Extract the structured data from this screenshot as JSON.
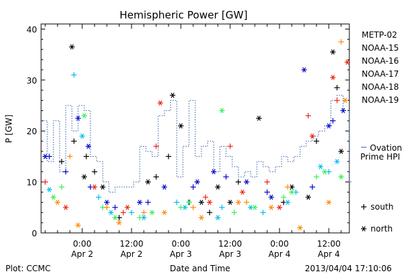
{
  "chart_data": {
    "type": "scatter",
    "title": "Hemispheric Power [GW]",
    "ylabel": "P [GW]",
    "xlabel": "Date and Time",
    "ylim": [
      0,
      41
    ],
    "xlim": [
      "2013-04-01T14:00",
      "2013-04-04T17:00"
    ],
    "grid": false,
    "y_ticks": [
      "0",
      "10",
      "20",
      "30",
      "40"
    ],
    "x_ticks": [
      {
        "time": "2013-04-02T00:00",
        "line1": "0:00",
        "line2": "Apr 2"
      },
      {
        "time": "2013-04-02T12:00",
        "line1": "12:00",
        "line2": "Apr 2"
      },
      {
        "time": "2013-04-03T00:00",
        "line1": "0:00",
        "line2": "Apr 3"
      },
      {
        "time": "2013-04-03T12:00",
        "line1": "12:00",
        "line2": "Apr 3"
      },
      {
        "time": "2013-04-04T00:00",
        "line1": "0:00",
        "line2": "Apr 4"
      },
      {
        "time": "2013-04-04T12:00",
        "line1": "12:00",
        "line2": "Apr 4"
      }
    ],
    "legend_position": "right",
    "series": [
      {
        "name": "METP-02",
        "color": "#000000",
        "north": [
          [
            "2013-04-01T21:30",
            36.5
          ],
          [
            "2013-04-02T00:30",
            11
          ],
          [
            "2013-04-02T05:00",
            9
          ],
          [
            "2013-04-02T16:00",
            10
          ],
          [
            "2013-04-02T22:00",
            27
          ],
          [
            "2013-04-03T00:00",
            21
          ],
          [
            "2013-04-03T05:00",
            6
          ],
          [
            "2013-04-03T09:00",
            9
          ],
          [
            "2013-04-03T12:00",
            6
          ],
          [
            "2013-04-03T19:00",
            22.5
          ],
          [
            "2013-04-04T03:00",
            9
          ],
          [
            "2013-04-04T07:00",
            7
          ],
          [
            "2013-04-04T13:00",
            35.5
          ],
          [
            "2013-04-04T15:00",
            16
          ]
        ],
        "south": [
          [
            "2013-04-01T19:00",
            14
          ],
          [
            "2013-04-01T22:00",
            18
          ],
          [
            "2013-04-02T01:00",
            15
          ],
          [
            "2013-04-02T03:00",
            12
          ],
          [
            "2013-04-02T09:00",
            3
          ],
          [
            "2013-04-02T18:00",
            11
          ],
          [
            "2013-04-02T21:00",
            15
          ],
          [
            "2013-04-03T02:00",
            6
          ],
          [
            "2013-04-03T07:00",
            4
          ],
          [
            "2013-04-03T14:00",
            10
          ],
          [
            "2013-04-04T01:00",
            6
          ],
          [
            "2013-04-04T09:00",
            18
          ],
          [
            "2013-04-04T14:00",
            28.5
          ]
        ]
      },
      {
        "name": "NOAA-15",
        "color": "#0000cc",
        "north": [
          [
            "2013-04-01T15:00",
            15
          ],
          [
            "2013-04-01T23:00",
            22.5
          ],
          [
            "2013-04-02T01:30",
            17
          ],
          [
            "2013-04-02T06:00",
            6
          ],
          [
            "2013-04-02T14:00",
            6
          ],
          [
            "2013-04-02T20:00",
            9
          ],
          [
            "2013-04-03T04:00",
            10
          ],
          [
            "2013-04-03T08:00",
            12
          ],
          [
            "2013-04-03T16:00",
            10
          ],
          [
            "2013-04-03T22:00",
            7
          ],
          [
            "2013-04-04T06:00",
            32
          ],
          [
            "2013-04-04T12:00",
            21
          ],
          [
            "2013-04-04T15:30",
            24
          ]
        ],
        "south": [
          [
            "2013-04-01T16:00",
            15
          ],
          [
            "2013-04-01T20:00",
            12
          ],
          [
            "2013-04-02T02:00",
            9
          ],
          [
            "2013-04-02T08:00",
            5
          ],
          [
            "2013-04-02T16:00",
            6
          ],
          [
            "2013-04-03T03:00",
            9
          ],
          [
            "2013-04-03T11:00",
            11
          ],
          [
            "2013-04-03T21:00",
            8
          ],
          [
            "2013-04-04T08:00",
            9
          ],
          [
            "2013-04-04T13:00",
            22
          ]
        ]
      },
      {
        "name": "NOAA-16",
        "color": "#00bbee",
        "north": [
          [
            "2013-04-01T16:00",
            8.5
          ],
          [
            "2013-04-02T00:00",
            19
          ],
          [
            "2013-04-02T07:00",
            4
          ],
          [
            "2013-04-02T15:00",
            3
          ],
          [
            "2013-04-03T01:00",
            5
          ],
          [
            "2013-04-03T09:00",
            3
          ],
          [
            "2013-04-03T17:00",
            5
          ],
          [
            "2013-04-04T02:00",
            6
          ],
          [
            "2013-04-04T10:00",
            13
          ],
          [
            "2013-04-04T14:00",
            14
          ]
        ],
        "south": [
          [
            "2013-04-01T22:00",
            31
          ],
          [
            "2013-04-02T04:00",
            7
          ],
          [
            "2013-04-02T12:00",
            4
          ],
          [
            "2013-04-02T23:00",
            6
          ],
          [
            "2013-04-03T10:00",
            5
          ],
          [
            "2013-04-03T20:00",
            4
          ],
          [
            "2013-04-04T04:00",
            8
          ],
          [
            "2013-04-04T12:00",
            12
          ]
        ]
      },
      {
        "name": "NOAA-17",
        "color": "#33ee55",
        "north": [
          [
            "2013-04-01T17:00",
            7
          ],
          [
            "2013-04-02T00:30",
            23
          ],
          [
            "2013-04-02T08:00",
            3
          ],
          [
            "2013-04-02T17:00",
            4
          ],
          [
            "2013-04-03T02:00",
            6
          ],
          [
            "2013-04-03T10:00",
            24
          ],
          [
            "2013-04-03T18:00",
            5
          ],
          [
            "2013-04-04T03:00",
            8
          ],
          [
            "2013-04-04T11:00",
            12
          ],
          [
            "2013-04-04T15:00",
            11
          ]
        ],
        "south": [
          [
            "2013-04-01T19:00",
            9
          ],
          [
            "2013-04-02T05:00",
            5
          ],
          [
            "2013-04-02T14:00",
            3
          ],
          [
            "2013-04-03T00:00",
            5
          ],
          [
            "2013-04-03T13:00",
            4
          ],
          [
            "2013-04-04T01:00",
            7
          ],
          [
            "2013-04-04T09:00",
            11
          ]
        ]
      },
      {
        "name": "NOAA-18",
        "color": "#ff8800",
        "north": [
          [
            "2013-04-01T18:00",
            6
          ],
          [
            "2013-04-01T23:00",
            1.5
          ],
          [
            "2013-04-02T09:00",
            2
          ],
          [
            "2013-04-02T20:00",
            4
          ],
          [
            "2013-04-03T05:00",
            3
          ],
          [
            "2013-04-03T14:00",
            6
          ],
          [
            "2013-04-03T22:00",
            5
          ],
          [
            "2013-04-04T05:00",
            1
          ],
          [
            "2013-04-04T12:00",
            6
          ],
          [
            "2013-04-04T16:00",
            26
          ]
        ],
        "south": [
          [
            "2013-04-01T21:00",
            15
          ],
          [
            "2013-04-02T06:00",
            5
          ],
          [
            "2013-04-02T15:00",
            4
          ],
          [
            "2013-04-03T03:00",
            5
          ],
          [
            "2013-04-03T16:00",
            6
          ],
          [
            "2013-04-04T02:00",
            9
          ],
          [
            "2013-04-04T15:00",
            37.5
          ]
        ]
      },
      {
        "name": "NOAA-19",
        "color": "#ee2211",
        "north": [
          [
            "2013-04-01T20:00",
            5
          ],
          [
            "2013-04-02T03:00",
            9
          ],
          [
            "2013-04-02T11:00",
            5
          ],
          [
            "2013-04-02T19:00",
            25.5
          ],
          [
            "2013-04-03T07:00",
            6
          ],
          [
            "2013-04-03T15:00",
            8
          ],
          [
            "2013-04-04T00:00",
            5
          ],
          [
            "2013-04-04T08:00",
            19
          ],
          [
            "2013-04-04T13:00",
            30.5
          ],
          [
            "2013-04-04T16:30",
            33.5
          ]
        ],
        "south": [
          [
            "2013-04-01T15:00",
            10
          ],
          [
            "2013-04-02T10:00",
            4
          ],
          [
            "2013-04-02T18:00",
            17
          ],
          [
            "2013-04-03T06:00",
            7
          ],
          [
            "2013-04-03T12:00",
            17
          ],
          [
            "2013-04-03T21:00",
            10
          ],
          [
            "2013-04-04T07:00",
            23
          ],
          [
            "2013-04-04T14:00",
            26
          ]
        ]
      }
    ],
    "ovation_step": {
      "name": "Ovation Prime HPI",
      "legend_lines": [
        "Ovation",
        "Prime HPI"
      ],
      "color": "#2255aa",
      "points": [
        [
          "2013-04-01T14:00",
          22
        ],
        [
          "2013-04-01T15:30",
          14
        ],
        [
          "2013-04-01T17:00",
          22
        ],
        [
          "2013-04-01T18:30",
          12
        ],
        [
          "2013-04-01T20:00",
          25
        ],
        [
          "2013-04-01T21:30",
          20
        ],
        [
          "2013-04-01T23:00",
          25
        ],
        [
          "2013-04-02T00:30",
          24
        ],
        [
          "2013-04-02T02:00",
          15
        ],
        [
          "2013-04-02T03:30",
          14
        ],
        [
          "2013-04-02T05:00",
          10
        ],
        [
          "2013-04-02T06:30",
          8
        ],
        [
          "2013-04-02T08:00",
          9
        ],
        [
          "2013-04-02T09:30",
          9
        ],
        [
          "2013-04-02T11:00",
          9
        ],
        [
          "2013-04-02T12:30",
          10
        ],
        [
          "2013-04-02T14:00",
          17
        ],
        [
          "2013-04-02T15:30",
          16
        ],
        [
          "2013-04-02T17:00",
          15
        ],
        [
          "2013-04-02T18:30",
          23
        ],
        [
          "2013-04-02T20:00",
          24
        ],
        [
          "2013-04-02T21:30",
          26
        ],
        [
          "2013-04-02T23:00",
          11
        ],
        [
          "2013-04-03T00:30",
          17
        ],
        [
          "2013-04-03T02:00",
          26
        ],
        [
          "2013-04-03T03:30",
          15
        ],
        [
          "2013-04-03T05:00",
          17
        ],
        [
          "2013-04-03T06:30",
          18
        ],
        [
          "2013-04-03T08:00",
          12
        ],
        [
          "2013-04-03T09:30",
          17
        ],
        [
          "2013-04-03T11:00",
          15
        ],
        [
          "2013-04-03T12:30",
          13
        ],
        [
          "2013-04-03T14:00",
          11
        ],
        [
          "2013-04-03T15:30",
          12
        ],
        [
          "2013-04-03T17:00",
          11
        ],
        [
          "2013-04-03T18:30",
          14
        ],
        [
          "2013-04-03T20:00",
          13
        ],
        [
          "2013-04-03T21:30",
          12
        ],
        [
          "2013-04-03T23:00",
          13
        ],
        [
          "2013-04-04T00:30",
          15
        ],
        [
          "2013-04-04T02:00",
          14
        ],
        [
          "2013-04-04T03:30",
          15
        ],
        [
          "2013-04-04T05:00",
          17
        ],
        [
          "2013-04-04T06:30",
          18
        ],
        [
          "2013-04-04T08:00",
          19
        ],
        [
          "2013-04-04T09:30",
          20
        ],
        [
          "2013-04-04T11:00",
          21
        ],
        [
          "2013-04-04T12:30",
          26
        ],
        [
          "2013-04-04T14:00",
          27
        ],
        [
          "2013-04-04T15:30",
          24
        ],
        [
          "2013-04-04T17:00",
          10
        ]
      ]
    },
    "marker_legend": [
      {
        "symbol": "+",
        "label": "south"
      },
      {
        "symbol": "*",
        "label": "north"
      }
    ]
  },
  "footer": {
    "left": "Plot: CCMC",
    "right": "2013/04/04 17:10:06"
  }
}
